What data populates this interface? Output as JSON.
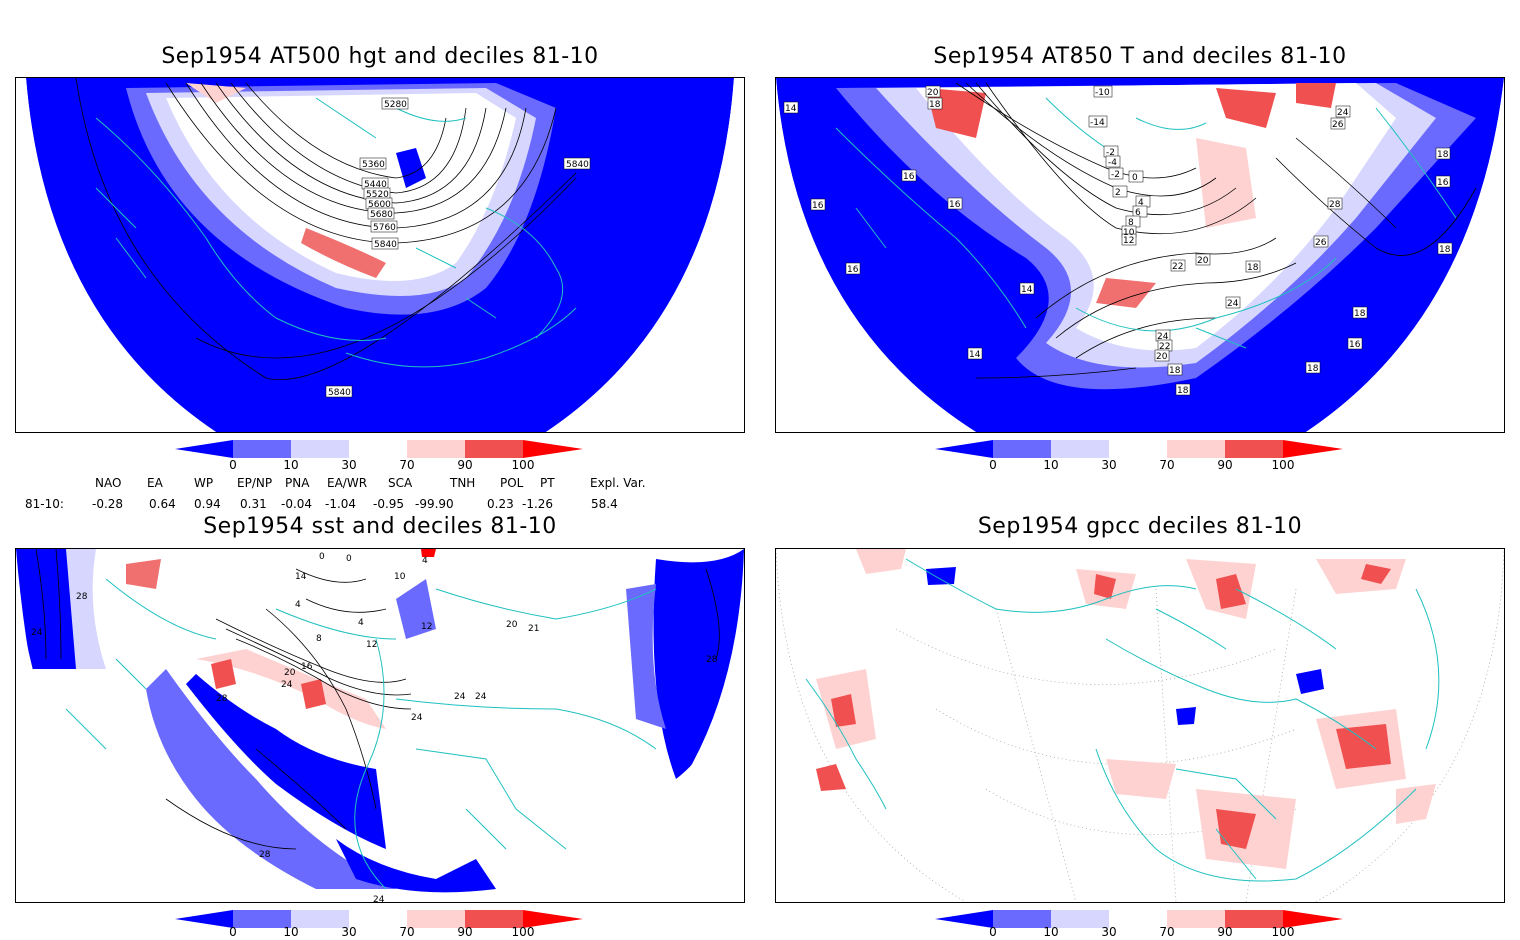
{
  "panels": {
    "hgt": {
      "title": "Sep1954 AT500 hgt and deciles 81-10",
      "contour_labels": [
        "5280",
        "5360",
        "5440",
        "5520",
        "5600",
        "5680",
        "5760",
        "5840",
        "5840",
        "5840"
      ]
    },
    "t850": {
      "title": "Sep1954 AT850 T and deciles 81-10",
      "contour_labels": [
        "20",
        "18",
        "14",
        "-10",
        "-14",
        "-2",
        "-4",
        "-2",
        "0",
        "2",
        "4",
        "6",
        "8",
        "10",
        "12",
        "24",
        "26",
        "28",
        "26",
        "18",
        "16",
        "16",
        "16",
        "16",
        "16",
        "14",
        "14",
        "20",
        "22",
        "18",
        "24",
        "24",
        "22",
        "20",
        "18",
        "18",
        "16",
        "18",
        "18",
        "18"
      ]
    },
    "sst": {
      "title": "Sep1954 sst and deciles 81-10",
      "contour_labels": [
        "28",
        "24",
        "0",
        "0",
        "4",
        "4",
        "10",
        "14",
        "4",
        "8",
        "12",
        "16",
        "20",
        "24",
        "28",
        "24",
        "24",
        "24",
        "20",
        "21",
        "12",
        "28",
        "28",
        "24"
      ]
    },
    "gpcc": {
      "title": "Sep1954 gpcc deciles 81-10"
    }
  },
  "colorbar": {
    "ticks": [
      "0",
      "10",
      "30",
      "70",
      "90",
      "100"
    ],
    "colors": [
      "#0000ff",
      "#6a6aff",
      "#d6d6ff",
      "#ffffff",
      "#ffd2d2",
      "#f05050",
      "#ff0000"
    ]
  },
  "indices": {
    "headers": [
      "NAO",
      "EA",
      "WP",
      "EP/NP",
      "PNA",
      "EA/WR",
      "SCA",
      "TNH",
      "POL",
      "PT",
      "Expl. Var."
    ],
    "row_label": "81-10:",
    "values": [
      "-0.28",
      "0.64",
      "0.94",
      "0.31",
      "-0.04",
      "-1.04",
      "-0.95",
      "-99.90",
      "0.23",
      "-1.26",
      "58.4"
    ]
  }
}
